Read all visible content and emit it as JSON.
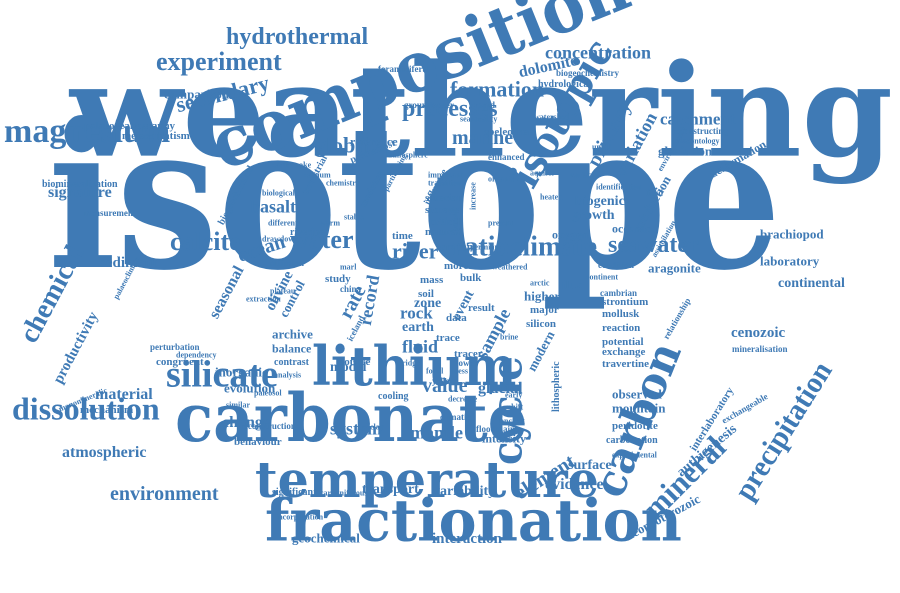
{
  "accent_color": "#3f7ab5",
  "background_color": "#ffffff",
  "words": [
    {
      "id": "weathering",
      "text": "weathering"
    },
    {
      "id": "isotope",
      "text": "isotope"
    },
    {
      "id": "composition",
      "text": "composition"
    },
    {
      "id": "carbonate",
      "text": "carbonate"
    },
    {
      "id": "temperature",
      "text": "temperature"
    },
    {
      "id": "fractionation",
      "text": "fractionation"
    },
    {
      "id": "lithium",
      "text": "lithium"
    },
    {
      "id": "magnesium",
      "text": "magnesium"
    },
    {
      "id": "silicate",
      "text": "silicate"
    },
    {
      "id": "dissolution",
      "text": "dissolution"
    },
    {
      "id": "isotopic",
      "text": "isotopic"
    },
    {
      "id": "carbon",
      "text": "carbon"
    },
    {
      "id": "precipitation",
      "text": "precipitation"
    },
    {
      "id": "mineral",
      "text": "mineral"
    },
    {
      "id": "cycle",
      "text": "cycle"
    },
    {
      "id": "hydrothermal",
      "text": "hydrothermal"
    },
    {
      "id": "experiment",
      "text": "experiment"
    },
    {
      "id": "concentration",
      "text": "concentration"
    },
    {
      "id": "dolomite",
      "text": "dolomite"
    },
    {
      "id": "formation",
      "text": "formation"
    },
    {
      "id": "processes",
      "text": "processes"
    },
    {
      "id": "secondary",
      "text": "secondary"
    },
    {
      "id": "marine",
      "text": "marine"
    },
    {
      "id": "primary",
      "text": "primary"
    },
    {
      "id": "variation",
      "text": "variation"
    },
    {
      "id": "catchment",
      "text": "catchment"
    },
    {
      "id": "glaciation",
      "text": "glaciation"
    },
    {
      "id": "deformation",
      "text": "deformation"
    },
    {
      "id": "chemical",
      "text": "chemical"
    },
    {
      "id": "signature",
      "text": "signature"
    },
    {
      "id": "calcite",
      "text": "calcite"
    },
    {
      "id": "ocean",
      "text": "ocean"
    },
    {
      "id": "water",
      "text": "water"
    },
    {
      "id": "basalt",
      "text": "basalt"
    },
    {
      "id": "global",
      "text": "global"
    },
    {
      "id": "river",
      "text": "river"
    },
    {
      "id": "ratio",
      "text": "ratio"
    },
    {
      "id": "climate",
      "text": "climate"
    },
    {
      "id": "seawater",
      "text": "seawater"
    },
    {
      "id": "brachiopod",
      "text": "brachiopod"
    },
    {
      "id": "laboratory",
      "text": "laboratory"
    },
    {
      "id": "aragonite",
      "text": "aragonite"
    },
    {
      "id": "continental",
      "text": "continental"
    },
    {
      "id": "sediment",
      "text": "sediment"
    },
    {
      "id": "productivity",
      "text": "productivity"
    },
    {
      "id": "seasonal",
      "text": "seasonal"
    },
    {
      "id": "material",
      "text": "material"
    },
    {
      "id": "atmospheric",
      "text": "atmospheric"
    },
    {
      "id": "environment",
      "text": "environment"
    },
    {
      "id": "change",
      "text": "change"
    },
    {
      "id": "system",
      "text": "system"
    },
    {
      "id": "mantle",
      "text": "mantle"
    },
    {
      "id": "model",
      "text": "model"
    },
    {
      "id": "value",
      "text": "value"
    },
    {
      "id": "glacial",
      "text": "glacial"
    },
    {
      "id": "element",
      "text": "element"
    },
    {
      "id": "surface",
      "text": "surface"
    },
    {
      "id": "evidence",
      "text": "evidence"
    },
    {
      "id": "transport",
      "text": "transport"
    },
    {
      "id": "variability",
      "text": "variability"
    },
    {
      "id": "interaction",
      "text": "interaction"
    },
    {
      "id": "geochemical",
      "text": "geochemical"
    },
    {
      "id": "authigenesis",
      "text": "authigenesis"
    },
    {
      "id": "neoproterozoic",
      "text": "neoproterozoic"
    },
    {
      "id": "cenozoic",
      "text": "cenozoic"
    },
    {
      "id": "observed",
      "text": "observed"
    },
    {
      "id": "mountain",
      "text": "mountain"
    },
    {
      "id": "oceanic",
      "text": "oceanic"
    },
    {
      "id": "biogenic",
      "text": "biogenic"
    },
    {
      "id": "growth",
      "text": "growth"
    },
    {
      "id": "subduction",
      "text": "subduction"
    },
    {
      "id": "oxygen",
      "text": "oxygen"
    },
    {
      "id": "higher",
      "text": "higher"
    },
    {
      "id": "rock",
      "text": "rock"
    },
    {
      "id": "earth",
      "text": "earth"
    },
    {
      "id": "fluid",
      "text": "fluid"
    },
    {
      "id": "record",
      "text": "record"
    },
    {
      "id": "rate",
      "text": "rate"
    },
    {
      "id": "sample",
      "text": "sample"
    },
    {
      "id": "modern",
      "text": "modern"
    },
    {
      "id": "olivine",
      "text": "olivine"
    },
    {
      "id": "control",
      "text": "control"
    },
    {
      "id": "archive",
      "text": "archive"
    },
    {
      "id": "balance",
      "text": "balance"
    },
    {
      "id": "inorganic",
      "text": "inorganic"
    },
    {
      "id": "evolution",
      "text": "evolution"
    },
    {
      "id": "mechanism",
      "text": "mechanism"
    },
    {
      "id": "behaviour",
      "text": "behaviour"
    },
    {
      "id": "reconstruction",
      "text": "reconstruction"
    },
    {
      "id": "significant",
      "text": "significant"
    },
    {
      "id": "carboniferous",
      "text": "carboniferous"
    },
    {
      "id": "intensity",
      "text": "intensity"
    },
    {
      "id": "floodplain",
      "text": "floodplain"
    },
    {
      "id": "peridotite",
      "text": "peridotite"
    },
    {
      "id": "carbonation",
      "text": "carbonation"
    },
    {
      "id": "experimental",
      "text": "experimental"
    },
    {
      "id": "interlaboratory",
      "text": "interlaboratory"
    },
    {
      "id": "exchangeable",
      "text": "exchangeable"
    },
    {
      "id": "mineralisation",
      "text": "mineralisation"
    },
    {
      "id": "strontium",
      "text": "strontium"
    },
    {
      "id": "mollusk",
      "text": "mollusk"
    },
    {
      "id": "reaction",
      "text": "reaction"
    },
    {
      "id": "potential",
      "text": "potential"
    },
    {
      "id": "exchange",
      "text": "exchange"
    },
    {
      "id": "travertine",
      "text": "travertine"
    },
    {
      "id": "lithospheric",
      "text": "lithospheric"
    },
    {
      "id": "reference",
      "text": "reference"
    },
    {
      "id": "speleothem",
      "text": "speleothem"
    },
    {
      "id": "palaeoceanography",
      "text": "palaeoceanography"
    },
    {
      "id": "comparison",
      "text": "comparison"
    },
    {
      "id": "metasomatism",
      "text": "metasomatism"
    },
    {
      "id": "biomineralization",
      "text": "biomineralization"
    },
    {
      "id": "measurement",
      "text": "measurement"
    },
    {
      "id": "perturbation",
      "text": "perturbation"
    },
    {
      "id": "dependency",
      "text": "dependency"
    },
    {
      "id": "congruent",
      "text": "congruent"
    },
    {
      "id": "monomineralic",
      "text": "monomineralic"
    },
    {
      "id": "foraminiferal",
      "text": "foraminiferal"
    },
    {
      "id": "biogeochemistry",
      "text": "biogeochemistry"
    },
    {
      "id": "hydrological",
      "text": "hydrological"
    },
    {
      "id": "groundwater",
      "text": "groundwater"
    },
    {
      "id": "reconstructing",
      "text": "reconstructing"
    },
    {
      "id": "palaeontology",
      "text": "palaeontology"
    },
    {
      "id": "environmental",
      "text": "environmental"
    },
    {
      "id": "influence",
      "text": "influence"
    },
    {
      "id": "siberian",
      "text": "siberian"
    },
    {
      "id": "storage",
      "text": "storage"
    },
    {
      "id": "critical",
      "text": "critical"
    },
    {
      "id": "natural",
      "text": "natural"
    },
    {
      "id": "craton",
      "text": "craton"
    },
    {
      "id": "enhanced",
      "text": "enhanced"
    },
    {
      "id": "biogeochemical",
      "text": "biogeochemical"
    },
    {
      "id": "riverine",
      "text": "riverine"
    },
    {
      "id": "study",
      "text": "study"
    },
    {
      "id": "source",
      "text": "source"
    },
    {
      "id": "contrast",
      "text": "contrast"
    },
    {
      "id": "trace",
      "text": "trace"
    },
    {
      "id": "tracer",
      "text": "tracer"
    },
    {
      "id": "soil",
      "text": "soil"
    },
    {
      "id": "event",
      "text": "event"
    },
    {
      "id": "zone",
      "text": "zone"
    },
    {
      "id": "data",
      "text": "data"
    },
    {
      "id": "result",
      "text": "result"
    },
    {
      "id": "mass",
      "text": "mass"
    },
    {
      "id": "more",
      "text": "more"
    },
    {
      "id": "time",
      "text": "time"
    },
    {
      "id": "organic",
      "text": "organic"
    },
    {
      "id": "cooling",
      "text": "cooling"
    },
    {
      "id": "iceland",
      "text": "iceland"
    },
    {
      "id": "permafrost",
      "text": "permafrost"
    },
    {
      "id": "atmosphere",
      "text": "atmosphere"
    },
    {
      "id": "modeling",
      "text": "modeling"
    },
    {
      "id": "partitioning",
      "text": "partitioning"
    },
    {
      "id": "flux",
      "text": "flux"
    },
    {
      "id": "major",
      "text": "major"
    },
    {
      "id": "cambrian",
      "text": "cambrian"
    },
    {
      "id": "condition",
      "text": "condition"
    },
    {
      "id": "relationship",
      "text": "relationship"
    },
    {
      "id": "diffusion",
      "text": "diffusion"
    },
    {
      "id": "palaeoclimate",
      "text": "palaeoclimate"
    },
    {
      "id": "different",
      "text": "different"
    },
    {
      "id": "plateau",
      "text": "plateau"
    },
    {
      "id": "similar",
      "text": "similar"
    },
    {
      "id": "climatic",
      "text": "climatic"
    },
    {
      "id": "bulk",
      "text": "bulk"
    },
    {
      "id": "rapid",
      "text": "rapid"
    },
    {
      "id": "important",
      "text": "important"
    },
    {
      "id": "transition",
      "text": "transition"
    },
    {
      "id": "increase",
      "text": "increase"
    },
    {
      "id": "present",
      "text": "present"
    },
    {
      "id": "period",
      "text": "period"
    },
    {
      "id": "china",
      "text": "china"
    },
    {
      "id": "stable",
      "text": "stable"
    },
    {
      "id": "drawdown",
      "text": "drawdown"
    },
    {
      "id": "analysis",
      "text": "analysis"
    },
    {
      "id": "ridge",
      "text": "ridge"
    },
    {
      "id": "fossil",
      "text": "fossil"
    },
    {
      "id": "loess",
      "text": "loess"
    },
    {
      "id": "yellow",
      "text": "yellow"
    },
    {
      "id": "lower",
      "text": "lower"
    },
    {
      "id": "decrease",
      "text": "decrease"
    },
    {
      "id": "permian",
      "text": "permian"
    },
    {
      "id": "early",
      "text": "early"
    },
    {
      "id": "warm",
      "text": "warm"
    },
    {
      "id": "paleosol",
      "text": "paleosol"
    },
    {
      "id": "weathered",
      "text": "weathered"
    },
    {
      "id": "arctic",
      "text": "arctic"
    },
    {
      "id": "silicon",
      "text": "silicon"
    },
    {
      "id": "brine",
      "text": "brine"
    },
    {
      "id": "earthquake",
      "text": "earthquake"
    },
    {
      "id": "terrestrial",
      "text": "terrestrial"
    },
    {
      "id": "chemistry",
      "text": "chemistry"
    },
    {
      "id": "biological",
      "text": "biological"
    },
    {
      "id": "calcium",
      "text": "calcium"
    },
    {
      "id": "extraction",
      "text": "extraction"
    },
    {
      "id": "marl",
      "text": "marl"
    },
    {
      "id": "continent",
      "text": "continent"
    },
    {
      "id": "ancient",
      "text": "ancient"
    },
    {
      "id": "shift",
      "text": "shift"
    },
    {
      "id": "seasonality",
      "text": "seasonality"
    },
    {
      "id": "fiord",
      "text": "fiord"
    },
    {
      "id": "clay",
      "text": "clay"
    },
    {
      "id": "watershed",
      "text": "watershed"
    },
    {
      "id": "uplift",
      "text": "uplift"
    },
    {
      "id": "incorporation",
      "text": "incorporation"
    },
    {
      "id": "variable",
      "text": "variable"
    },
    {
      "id": "assimilation",
      "text": "assimilation"
    },
    {
      "id": "identification",
      "text": "identification"
    },
    {
      "id": "aquifer",
      "text": "aquifer"
    },
    {
      "id": "heated",
      "text": "heated"
    }
  ]
}
